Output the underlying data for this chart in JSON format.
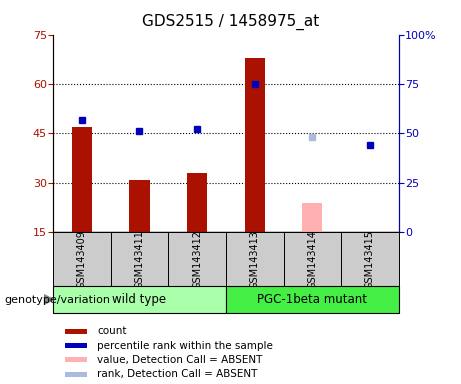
{
  "title": "GDS2515 / 1458975_at",
  "samples": [
    "GSM143409",
    "GSM143411",
    "GSM143412",
    "GSM143413",
    "GSM143414",
    "GSM143415"
  ],
  "bar_values": [
    47,
    31,
    33,
    68,
    null,
    15
  ],
  "bar_absent": [
    null,
    null,
    null,
    null,
    24,
    null
  ],
  "rank_values": [
    57,
    51,
    52,
    75,
    null,
    44
  ],
  "rank_absent": [
    null,
    null,
    null,
    null,
    48,
    null
  ],
  "bar_color": "#aa1100",
  "bar_absent_color": "#ffb0b0",
  "rank_color": "#0000bb",
  "rank_absent_color": "#aabbdd",
  "ylim_left": [
    15,
    75
  ],
  "ylim_right": [
    0,
    100
  ],
  "yticks_left": [
    15,
    30,
    45,
    60,
    75
  ],
  "yticks_right": [
    0,
    25,
    50,
    75,
    100
  ],
  "yticklabels_right": [
    "0",
    "25",
    "50",
    "75",
    "100%"
  ],
  "group_label": "genotype/variation",
  "wt_color": "#aaffaa",
  "pgc_color": "#44ee44",
  "sample_box_color": "#cccccc",
  "legend_items": [
    {
      "label": "count",
      "color": "#aa1100"
    },
    {
      "label": "percentile rank within the sample",
      "color": "#0000bb"
    },
    {
      "label": "value, Detection Call = ABSENT",
      "color": "#ffb0b0"
    },
    {
      "label": "rank, Detection Call = ABSENT",
      "color": "#aabbdd"
    }
  ],
  "bar_width": 0.35
}
